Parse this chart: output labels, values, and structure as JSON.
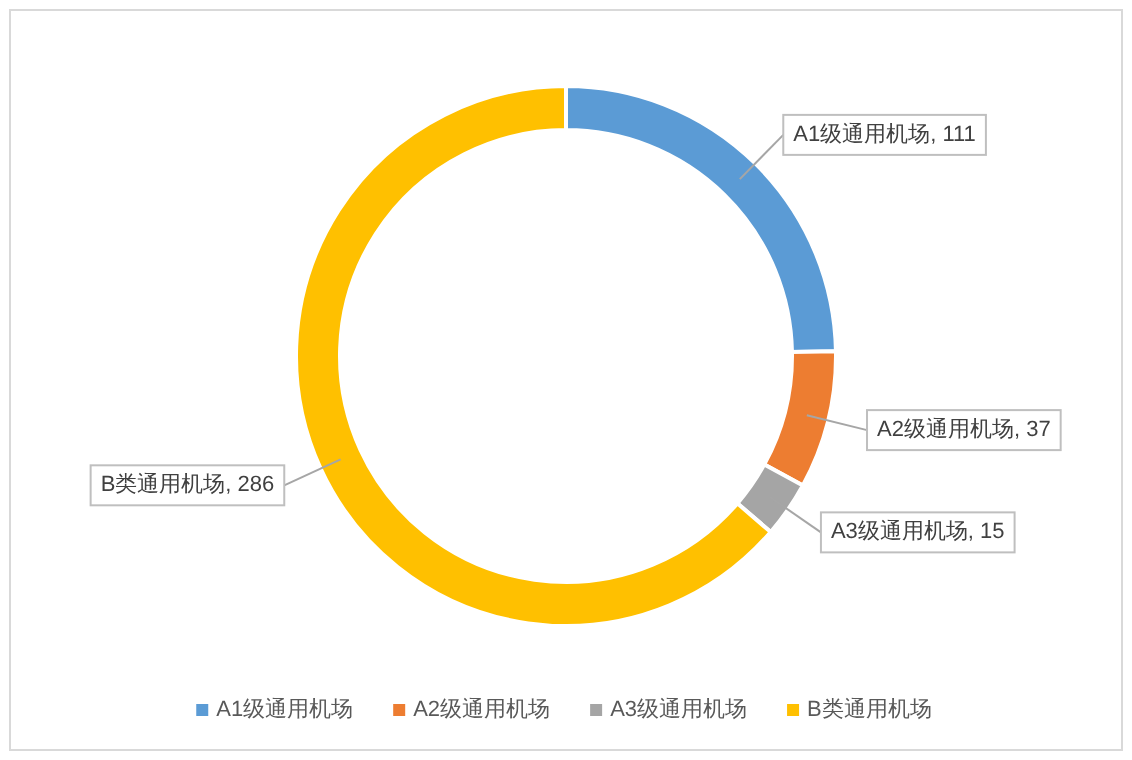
{
  "chart_data": {
    "type": "donut",
    "categories": [
      "A1级通用机场",
      "A2级通用机场",
      "A3级通用机场",
      "B类通用机场"
    ],
    "values": [
      111,
      37,
      15,
      286
    ],
    "colors": [
      "#5b9bd5",
      "#ed7d31",
      "#a5a5a5",
      "#ffc000"
    ],
    "value_labels": [
      ", 111",
      ", 37",
      ", 15",
      ", 286"
    ],
    "legend": "bottom"
  }
}
